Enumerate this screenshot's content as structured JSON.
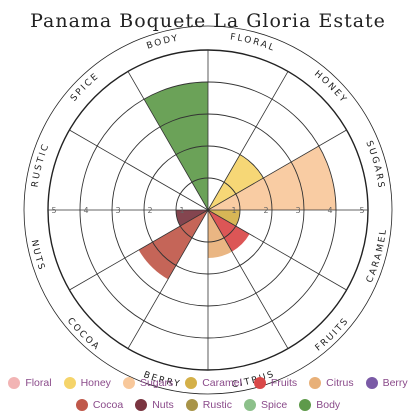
{
  "chart_data": {
    "type": "polar-bar",
    "title": "Panama Boquete La Gloria Estate",
    "rlim": [
      0,
      5
    ],
    "grid": true,
    "radial_ticks": [
      "1",
      "2",
      "3",
      "4",
      "5"
    ],
    "categories": [
      "Body",
      "Floral",
      "Honey",
      "Sugars",
      "Caramel",
      "Fruits",
      "Citrus",
      "Berry",
      "Cocoa",
      "Nuts",
      "Rustic",
      "Spice"
    ],
    "category_labels": [
      "BODY",
      "FLORAL",
      "HONEY",
      "SUGARS",
      "CARAMEL",
      "FRUITS",
      "CITRUS",
      "BERRY",
      "COCOA",
      "NUTS",
      "RUSTIC",
      "SPICE"
    ],
    "values": [
      4,
      0,
      2,
      4,
      1,
      1.5,
      1.5,
      0,
      2.5,
      1,
      0,
      0
    ],
    "colors": [
      "#5e9a4a",
      "#f2b4b4",
      "#f5d46a",
      "#f8c89b",
      "#d4b048",
      "#d94848",
      "#e8b078",
      "#7a5aa6",
      "#c0584a",
      "#7a3540",
      "#a89448",
      "#8cc08a"
    ],
    "legend": [
      {
        "name": "Floral",
        "color": "#f2b4b4"
      },
      {
        "name": "Honey",
        "color": "#f5d46a"
      },
      {
        "name": "Sugars",
        "color": "#f8c89b"
      },
      {
        "name": "Caramel",
        "color": "#d4b048"
      },
      {
        "name": "Fruits",
        "color": "#d94848"
      },
      {
        "name": "Citrus",
        "color": "#e8b078"
      },
      {
        "name": "Berry",
        "color": "#7a5aa6"
      },
      {
        "name": "Cocoa",
        "color": "#c0584a"
      },
      {
        "name": "Nuts",
        "color": "#7a3540"
      },
      {
        "name": "Rustic",
        "color": "#a89448"
      },
      {
        "name": "Spice",
        "color": "#8cc08a"
      },
      {
        "name": "Body",
        "color": "#5e9a4a"
      }
    ]
  }
}
